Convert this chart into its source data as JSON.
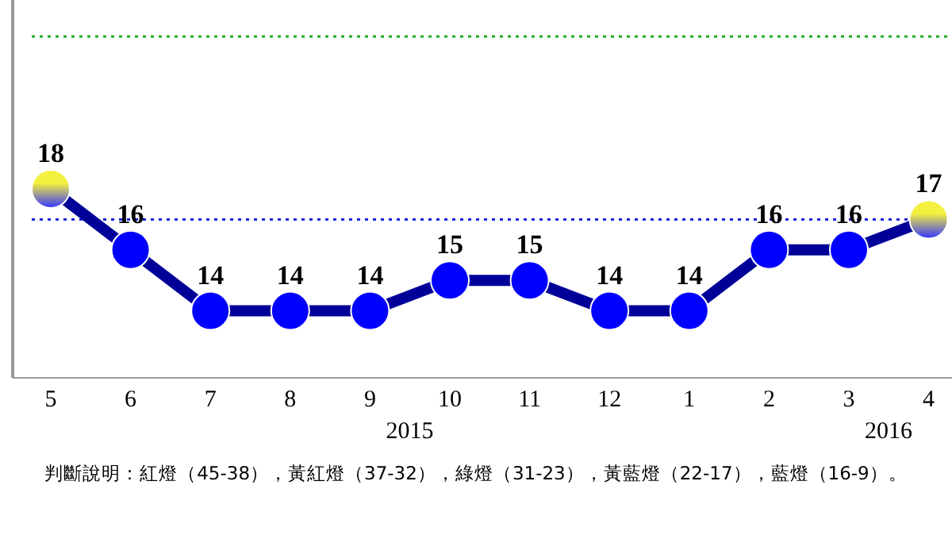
{
  "chart_data": {
    "type": "line",
    "categories": [
      "5",
      "6",
      "7",
      "8",
      "9",
      "10",
      "11",
      "12",
      "1",
      "2",
      "3",
      "4"
    ],
    "series": [
      {
        "color": "#000099",
        "values": [
          18,
          16,
          14,
          14,
          14,
          15,
          15,
          14,
          14,
          16,
          16,
          17
        ],
        "colors": [
          "#f4f040",
          "#0000ff",
          "#0000ff",
          "#0000ff",
          "#0000ff",
          "#0000ff",
          "#0000ff",
          "#0000ff",
          "#0000ff",
          "#0000ff",
          "#0000ff",
          "#f4f040"
        ]
      }
    ],
    "ylim": [
      11.8,
      24.2
    ],
    "tick_labels": "x",
    "data_labels": true,
    "marker": "circle",
    "line_style": "solid",
    "ref_lines": [
      {
        "axis": "y",
        "value": 23,
        "color": "#22aa22",
        "line_style": "dotted"
      },
      {
        "axis": "y",
        "value": 17,
        "color": "#2222dd",
        "line_style": "dotted"
      }
    ],
    "annotations": [
      "2015",
      "2016",
      "判斷說明：紅燈（45-38），黃紅燈（37-32），綠燈（31-23），黃藍燈（22-17），藍燈（16-9）。"
    ]
  }
}
